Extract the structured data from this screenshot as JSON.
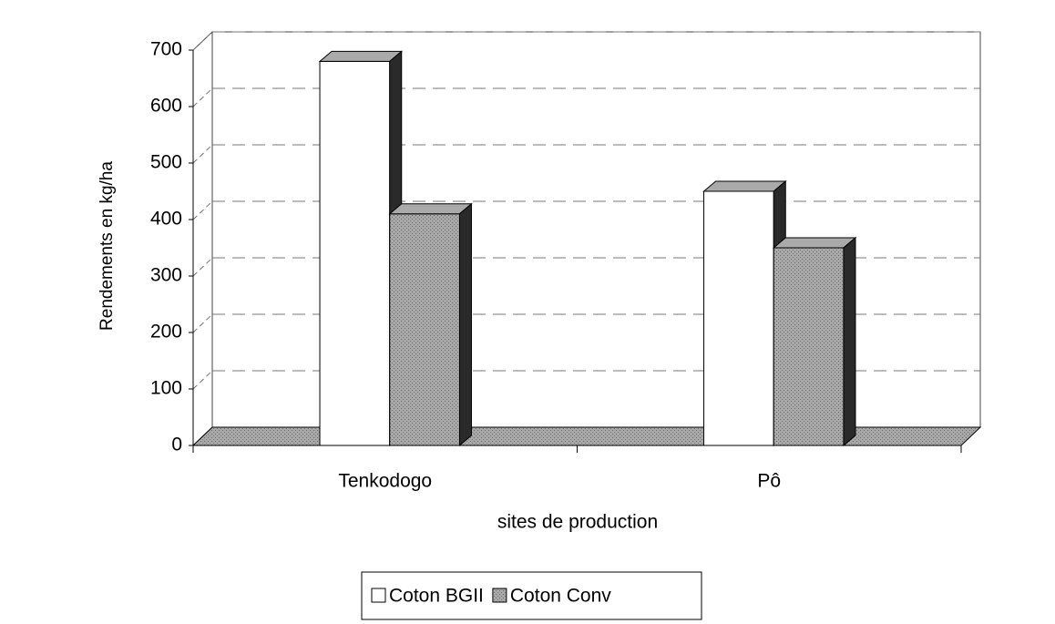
{
  "chart_data": {
    "type": "bar3d",
    "categories": [
      "Tenkodogo",
      "Pô"
    ],
    "series": [
      {
        "name": "Coton BGII",
        "color": "#ffffff",
        "values": [
          680,
          450
        ]
      },
      {
        "name": "Coton Conv",
        "color": "#a3a3a3",
        "values": [
          410,
          350
        ]
      }
    ],
    "xlabel": "sites de production",
    "ylabel": "Rendements en kg/ha",
    "ylim": [
      0,
      700
    ],
    "yticks": [
      0,
      100,
      200,
      300,
      400,
      500,
      600,
      700
    ],
    "grid": true,
    "legend": "bottom"
  }
}
